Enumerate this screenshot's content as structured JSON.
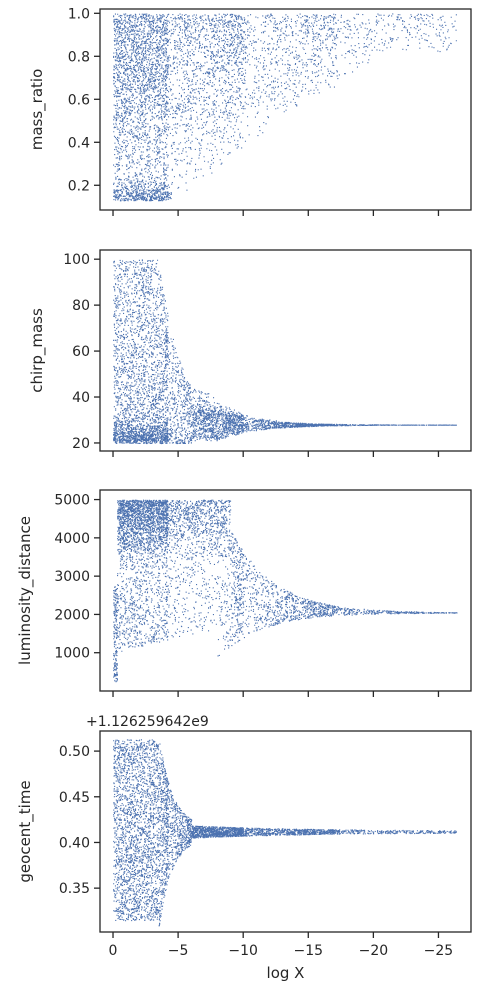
{
  "chart_data": [
    {
      "type": "scatter",
      "ylabel": "mass_ratio",
      "xlabel": "",
      "xlim": [
        1,
        -27.5
      ],
      "ylim": [
        0.085,
        1.02
      ],
      "yticks": [
        0.2,
        0.4,
        0.6,
        0.8,
        1.0
      ],
      "ytick_labels": [
        "0.2",
        "0.4",
        "0.6",
        "0.8",
        "1.0"
      ],
      "xticks": [
        0,
        -5,
        -10,
        -15,
        -20,
        -25
      ],
      "xtick_labels": [],
      "color": "#4c72b0",
      "grid": false
    },
    {
      "type": "scatter",
      "ylabel": "chirp_mass",
      "xlabel": "",
      "xlim": [
        1,
        -27.5
      ],
      "ylim": [
        16.5,
        104
      ],
      "yticks": [
        20,
        40,
        60,
        80,
        100
      ],
      "ytick_labels": [
        "20",
        "40",
        "60",
        "80",
        "100"
      ],
      "xticks": [
        0,
        -5,
        -10,
        -15,
        -20,
        -25
      ],
      "xtick_labels": [],
      "color": "#4c72b0",
      "grid": false
    },
    {
      "type": "scatter",
      "ylabel": "luminosity_distance",
      "xlabel": "",
      "xlim": [
        1,
        -27.5
      ],
      "ylim": [
        0,
        5250
      ],
      "yticks": [
        1000,
        2000,
        3000,
        4000,
        5000
      ],
      "ytick_labels": [
        "1000",
        "2000",
        "3000",
        "4000",
        "5000"
      ],
      "xticks": [
        0,
        -5,
        -10,
        -15,
        -20,
        -25
      ],
      "xtick_labels": [],
      "color": "#4c72b0",
      "grid": false
    },
    {
      "type": "scatter",
      "ylabel": "geocent_time",
      "xlabel": "log X",
      "offset_text": "+1.126259642e9",
      "xlim": [
        1,
        -27.5
      ],
      "ylim": [
        0.302,
        0.522
      ],
      "yticks": [
        0.35,
        0.4,
        0.45,
        0.5
      ],
      "ytick_labels": [
        "0.35",
        "0.40",
        "0.45",
        "0.50"
      ],
      "xticks": [
        0,
        -5,
        -10,
        -15,
        -20,
        -25
      ],
      "xtick_labels": [
        "0",
        "−5",
        "−10",
        "−15",
        "−20",
        "−25"
      ],
      "color": "#4c72b0",
      "grid": false
    }
  ]
}
